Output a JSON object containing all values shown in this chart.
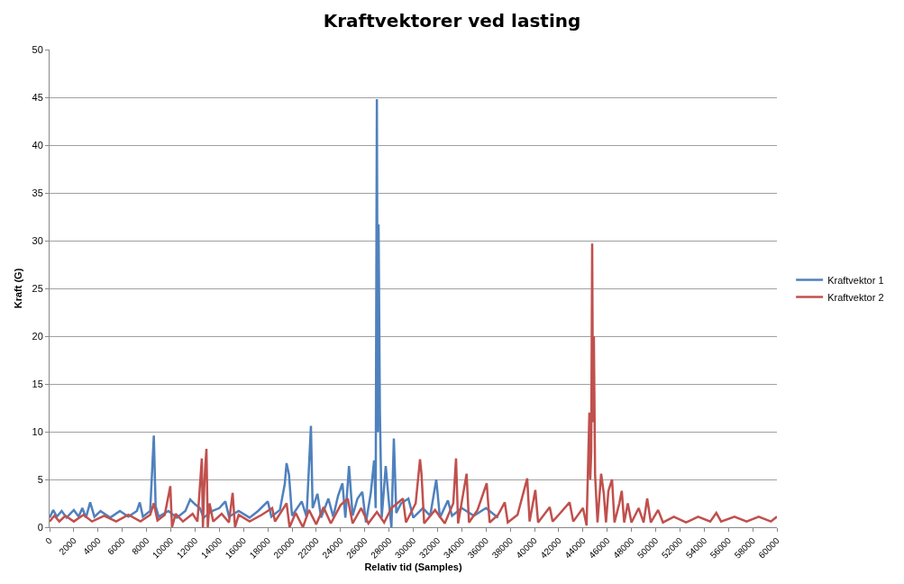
{
  "chart_data": {
    "type": "line",
    "title": "Kraftvektorer ved lasting",
    "xlabel": "Relativ tid (Samples)",
    "ylabel": "Kraft (G)",
    "xlim": [
      0,
      60000
    ],
    "xticks": [
      0,
      2000,
      4000,
      6000,
      8000,
      10000,
      12000,
      14000,
      16000,
      18000,
      20000,
      22000,
      24000,
      26000,
      28000,
      30000,
      32000,
      34000,
      36000,
      38000,
      40000,
      42000,
      44000,
      46000,
      48000,
      50000,
      52000,
      54000,
      56000,
      58000,
      60000
    ],
    "ylim": [
      0,
      50
    ],
    "yticks": [
      0,
      5,
      10,
      15,
      20,
      25,
      30,
      35,
      40,
      45,
      50
    ],
    "grid": "y",
    "legend": "right",
    "marker": "none",
    "line_style": "solid",
    "series": [
      {
        "name": "Kraftvektor 1",
        "color": "#4f81bd",
        "x": [
          0,
          300,
          600,
          1000,
          1400,
          2000,
          2400,
          2700,
          3000,
          3350,
          3700,
          4200,
          5000,
          5800,
          6500,
          7200,
          7440,
          7700,
          8300,
          8600,
          8750,
          9000,
          9800,
          10500,
          11200,
          11600,
          12000,
          12400,
          12700,
          13400,
          14000,
          14500,
          14800,
          15600,
          16500,
          17200,
          18000,
          18300,
          19000,
          19400,
          19550,
          19750,
          20000,
          20800,
          21200,
          21560,
          21700,
          22100,
          22400,
          23000,
          23400,
          23800,
          24160,
          24400,
          24700,
          25000,
          25400,
          25800,
          26100,
          26500,
          26770,
          26900,
          27000,
          27080,
          27140,
          27250,
          27400,
          27730,
          28000,
          28200,
          28400,
          28600,
          29000,
          29600,
          30000,
          30800,
          31400,
          31900,
          32200,
          32860,
          33200,
          34000,
          35000,
          36000,
          37000
        ],
        "values": [
          1.0,
          1.8,
          1.1,
          1.7,
          1.0,
          1.8,
          1.1,
          2.0,
          1.0,
          2.6,
          1.1,
          1.7,
          1.0,
          1.7,
          1.1,
          1.7,
          2.6,
          1.1,
          1.7,
          9.6,
          2.2,
          1.1,
          1.7,
          1.0,
          1.7,
          2.9,
          2.4,
          2.0,
          1.0,
          1.7,
          2.0,
          2.7,
          1.1,
          1.7,
          1.0,
          1.7,
          2.7,
          1.1,
          1.8,
          4.5,
          6.7,
          5.5,
          1.2,
          2.7,
          1.1,
          10.6,
          2.0,
          3.5,
          1.0,
          3.0,
          1.1,
          3.3,
          4.6,
          1.0,
          6.4,
          1.2,
          3.0,
          3.7,
          0.5,
          3.6,
          7.0,
          2.0,
          44.8,
          10,
          31.7,
          12,
          1.0,
          6.4,
          2.5,
          0,
          9.3,
          1.5,
          2.5,
          3.0,
          1.0,
          2.0,
          1.2,
          5.0,
          1.0,
          2.8,
          1.2,
          2.0,
          1.2,
          2.0,
          1.0
        ]
      },
      {
        "name": "Kraftvektor 2",
        "color": "#c0504d",
        "x": [
          0,
          400,
          800,
          1300,
          2000,
          2800,
          3500,
          4500,
          5500,
          6500,
          7500,
          8300,
          8600,
          8900,
          9500,
          9960,
          10100,
          10400,
          11000,
          11800,
          12200,
          12560,
          12650,
          12750,
          12850,
          12940,
          13050,
          13200,
          13500,
          14200,
          14800,
          15100,
          15300,
          15600,
          16500,
          17500,
          18360,
          18600,
          19550,
          19800,
          20300,
          20900,
          21400,
          22000,
          22600,
          23200,
          24000,
          24600,
          25000,
          25700,
          26300,
          27000,
          27600,
          28200,
          29150,
          29400,
          30200,
          30560,
          30680,
          30900,
          31800,
          32600,
          33300,
          33530,
          33700,
          34400,
          34600,
          35300,
          36060,
          36300,
          37000,
          37550,
          37800,
          38600,
          39400,
          39600,
          40070,
          40300,
          41260,
          41500,
          42000,
          42900,
          43200,
          44000,
          44300,
          44530,
          44600,
          44680,
          44760,
          44830,
          44900,
          45000,
          45200,
          45500,
          45720,
          45900,
          46100,
          46400,
          46600,
          47000,
          47200,
          47400,
          47700,
          48000,
          48600,
          49000,
          49300,
          49600,
          50200,
          50600,
          51500,
          52500,
          53500,
          54500,
          55000,
          55400,
          56500,
          57500,
          58500,
          59500,
          60000
        ],
        "values": [
          0.6,
          1.2,
          0.6,
          1.2,
          0.6,
          1.3,
          0.6,
          1.2,
          0.6,
          1.3,
          0.6,
          1.3,
          2.5,
          0.7,
          1.3,
          4.3,
          0.0,
          1.4,
          0.6,
          1.4,
          0.6,
          7.2,
          0,
          4.0,
          6.5,
          8.2,
          0,
          2.5,
          0.6,
          1.4,
          0.5,
          3.6,
          0,
          1.3,
          0.6,
          1.3,
          2.0,
          0.6,
          2.5,
          0.0,
          1.5,
          0,
          1.8,
          0.3,
          2.1,
          0.4,
          2.3,
          3.0,
          0.4,
          2.0,
          0.4,
          1.6,
          0.5,
          2.0,
          3.0,
          0.5,
          2.5,
          7.1,
          5.6,
          0.4,
          1.8,
          0.4,
          2.5,
          7.2,
          0.4,
          5.6,
          0.5,
          1.8,
          4.6,
          0.5,
          1.3,
          2.6,
          0.5,
          1.3,
          5.1,
          0.6,
          3.9,
          0.5,
          2.1,
          0.6,
          1.3,
          2.6,
          0.6,
          2.0,
          0.2,
          12.0,
          5,
          7.8,
          29.7,
          11,
          20,
          5.5,
          0.5,
          5.6,
          3.5,
          0.5,
          3.8,
          5.0,
          0.5,
          2.5,
          3.8,
          0.5,
          2.5,
          0.5,
          2.0,
          0.5,
          3.0,
          0.5,
          1.8,
          0.5,
          1.1,
          0.5,
          1.1,
          0.6,
          1.5,
          0.6,
          1.1,
          0.6,
          1.1,
          0.6,
          1.1
        ]
      }
    ]
  }
}
